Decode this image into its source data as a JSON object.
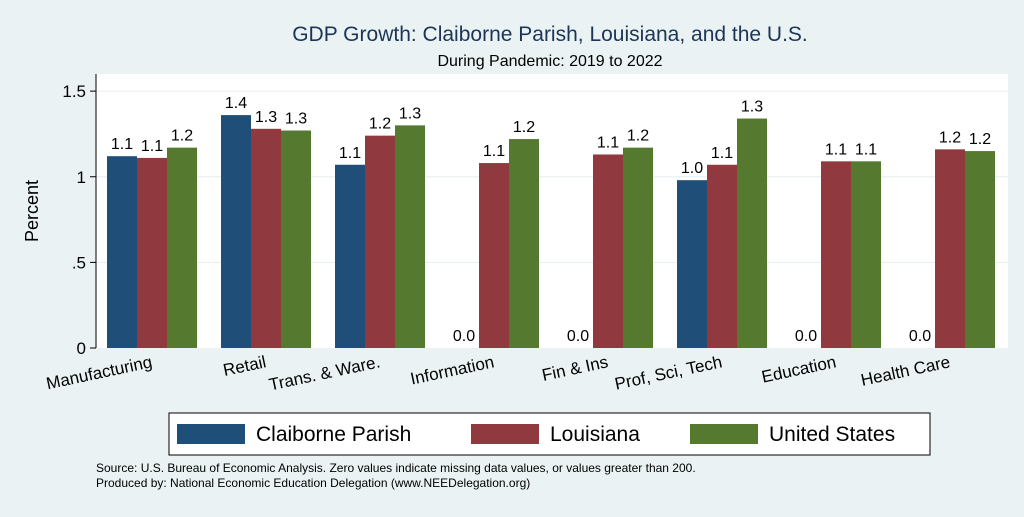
{
  "chart_data": {
    "type": "bar",
    "title": "GDP Growth: Claiborne Parish, Louisiana, and the U.S.",
    "subtitle": "During Pandemic: 2019 to 2022",
    "xlabel": "",
    "ylabel": "Percent",
    "ylim": [
      0,
      1.6
    ],
    "yticks": [
      0,
      0.5,
      1,
      1.5
    ],
    "ytick_labels": [
      "0",
      ".5",
      "1",
      "1.5"
    ],
    "grid": true,
    "legend_position": "bottom",
    "categories": [
      "Manufacturing",
      "Retail",
      "Trans. & Ware.",
      "Information",
      "Fin & Ins",
      "Prof, Sci, Tech",
      "Education",
      "Health Care"
    ],
    "series": [
      {
        "name": "Claiborne Parish",
        "color": "#1f4e79",
        "values": [
          1.12,
          1.36,
          1.07,
          0,
          0,
          0.98,
          0,
          0
        ],
        "labels": [
          "1.1",
          "1.4",
          "1.1",
          "0.0",
          "0.0",
          "1.0",
          "0.0",
          "0.0"
        ]
      },
      {
        "name": "Louisiana",
        "color": "#903a40",
        "values": [
          1.11,
          1.28,
          1.24,
          1.08,
          1.13,
          1.07,
          1.09,
          1.16
        ],
        "labels": [
          "1.1",
          "1.3",
          "1.2",
          "1.1",
          "1.1",
          "1.1",
          "1.1",
          "1.2"
        ]
      },
      {
        "name": "United States",
        "color": "#55792f",
        "values": [
          1.17,
          1.27,
          1.3,
          1.22,
          1.17,
          1.34,
          1.09,
          1.15
        ],
        "labels": [
          "1.2",
          "1.3",
          "1.3",
          "1.2",
          "1.2",
          "1.3",
          "1.1",
          "1.2"
        ]
      }
    ]
  },
  "source_notes": {
    "line1": "Source: U.S. Bureau of Economic Analysis. Zero values indicate missing data values, or values greater than 200.",
    "line2": "Produced by: National Economic Education Delegation (www.NEEDelegation.org)"
  }
}
